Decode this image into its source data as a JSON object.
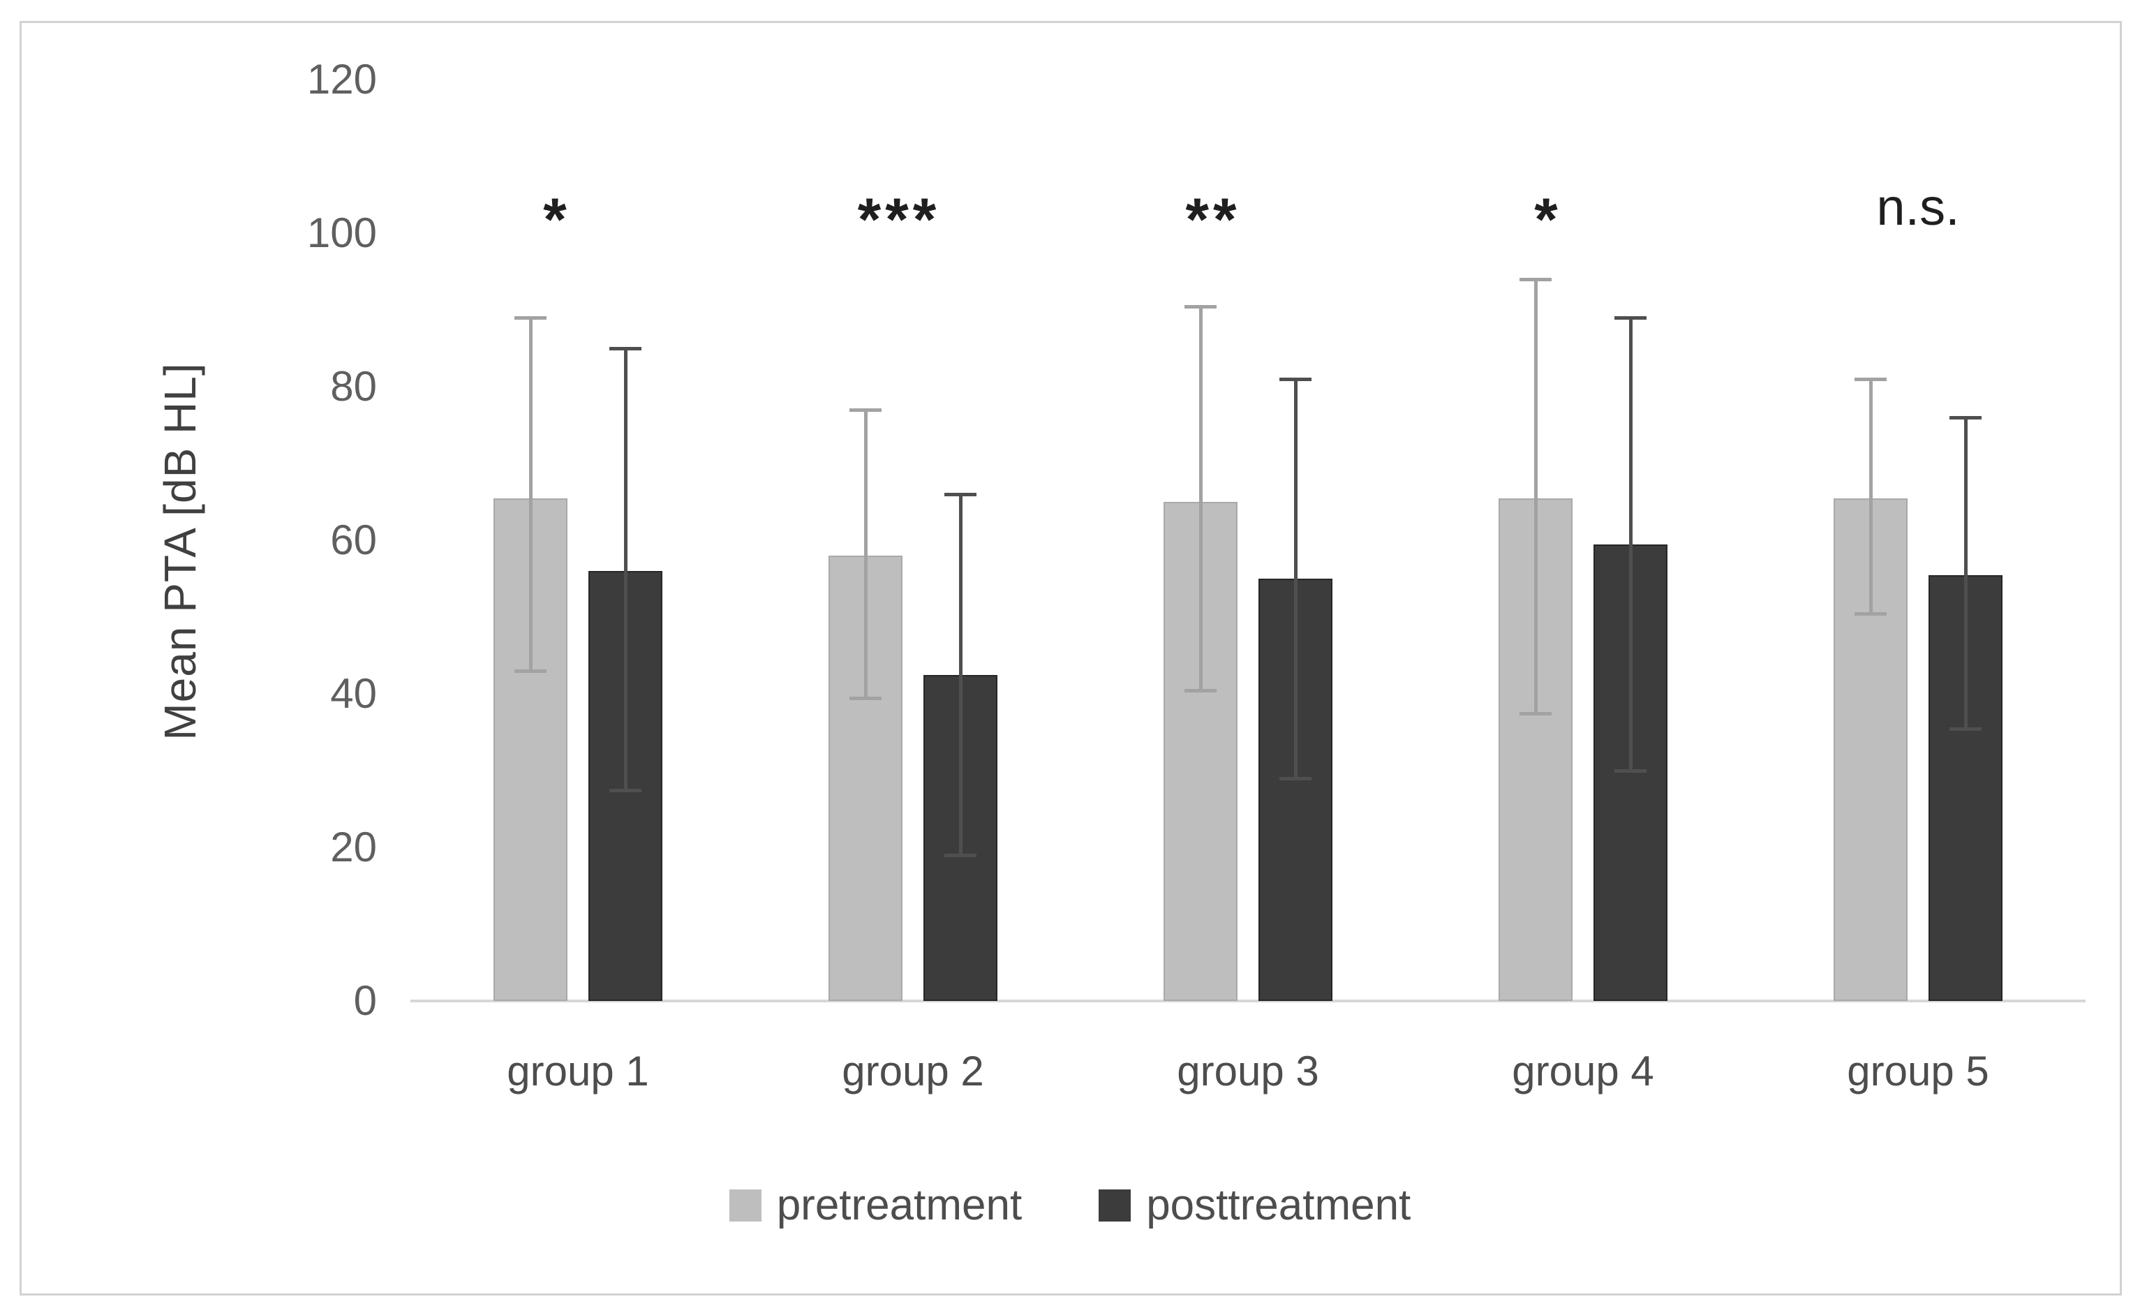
{
  "chart_data": {
    "type": "bar",
    "title": "",
    "ylabel": "Mean PTA [dB HL]",
    "xlabel": "",
    "ylim": [
      0,
      120
    ],
    "yticks": [
      0,
      20,
      40,
      60,
      80,
      100,
      120
    ],
    "grid": "off",
    "legend_position": "bottom",
    "categories": [
      "group 1",
      "group 2",
      "group 3",
      "group 4",
      "group 5"
    ],
    "series": [
      {
        "name": "pretreatment",
        "color": "#bebebe",
        "error_color": "#a2a2a2",
        "values": [
          65.5,
          58,
          65,
          65.5,
          65.5
        ],
        "error_high": [
          89,
          77,
          90.5,
          94,
          81
        ],
        "error_low": [
          43,
          39.5,
          40.5,
          37.5,
          50.5
        ]
      },
      {
        "name": "posttreatment",
        "color": "#3c3c3c",
        "error_color": "#4f4f4f",
        "values": [
          56,
          42.5,
          55,
          59.5,
          55.5
        ],
        "error_high": [
          85,
          66,
          81,
          89,
          76
        ],
        "error_low": [
          27.5,
          19,
          29,
          30,
          35.5
        ]
      }
    ],
    "significance": [
      "*",
      "***",
      "**",
      "*",
      "n.s."
    ]
  }
}
